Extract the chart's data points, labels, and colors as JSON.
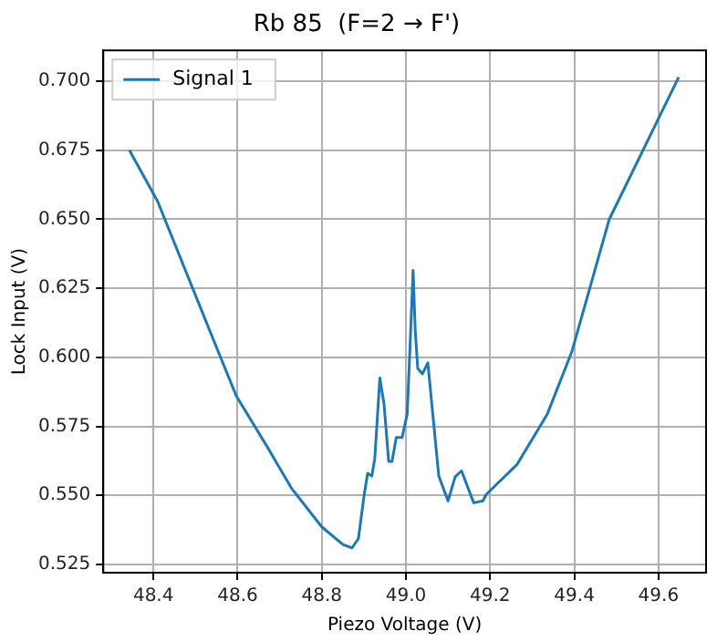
{
  "chart_data": {
    "type": "line",
    "title": "Rb 85  (F=2 → F')",
    "xlabel": "Piezo Voltage (V)",
    "ylabel": "Lock Input (V)",
    "xlim": [
      48.281,
      49.713
    ],
    "ylim": [
      0.522,
      0.7112
    ],
    "xticks": [
      {
        "value": 48.4,
        "label": "48.4"
      },
      {
        "value": 48.6,
        "label": "48.6"
      },
      {
        "value": 48.8,
        "label": "48.8"
      },
      {
        "value": 49.0,
        "label": "49.0"
      },
      {
        "value": 49.2,
        "label": "49.2"
      },
      {
        "value": 49.4,
        "label": "49.4"
      },
      {
        "value": 49.6,
        "label": "49.6"
      }
    ],
    "yticks": [
      {
        "value": 0.525,
        "label": "0.525"
      },
      {
        "value": 0.55,
        "label": "0.550"
      },
      {
        "value": 0.575,
        "label": "0.575"
      },
      {
        "value": 0.6,
        "label": "0.600"
      },
      {
        "value": 0.625,
        "label": "0.625"
      },
      {
        "value": 0.65,
        "label": "0.650"
      },
      {
        "value": 0.675,
        "label": "0.675"
      },
      {
        "value": 0.7,
        "label": "0.700"
      }
    ],
    "grid": true,
    "legend": "top left",
    "marker": "none",
    "line_style": "solid",
    "series": [
      {
        "name": "Signal 1",
        "color": "#1f77b4",
        "x": [
          48.343,
          48.41,
          48.533,
          48.597,
          48.67,
          48.728,
          48.8,
          48.851,
          48.872,
          48.887,
          48.901,
          48.909,
          48.919,
          48.926,
          48.938,
          48.948,
          48.959,
          48.967,
          48.977,
          48.991,
          49.003,
          49.01,
          49.017,
          49.022,
          49.028,
          49.039,
          49.052,
          49.078,
          49.1,
          49.117,
          49.132,
          49.161,
          49.183,
          49.191,
          49.264,
          49.336,
          49.394,
          49.483,
          49.648
        ],
        "values": [
          0.675,
          0.6565,
          0.61,
          0.586,
          0.5677,
          0.5526,
          0.5386,
          0.5321,
          0.531,
          0.5343,
          0.5504,
          0.558,
          0.557,
          0.5634,
          0.5925,
          0.583,
          0.5623,
          0.5623,
          0.571,
          0.571,
          0.5795,
          0.605,
          0.6315,
          0.61,
          0.596,
          0.594,
          0.598,
          0.557,
          0.548,
          0.5567,
          0.5589,
          0.5473,
          0.548,
          0.5504,
          0.5612,
          0.5795,
          0.602,
          0.65,
          0.7015
        ]
      }
    ]
  }
}
